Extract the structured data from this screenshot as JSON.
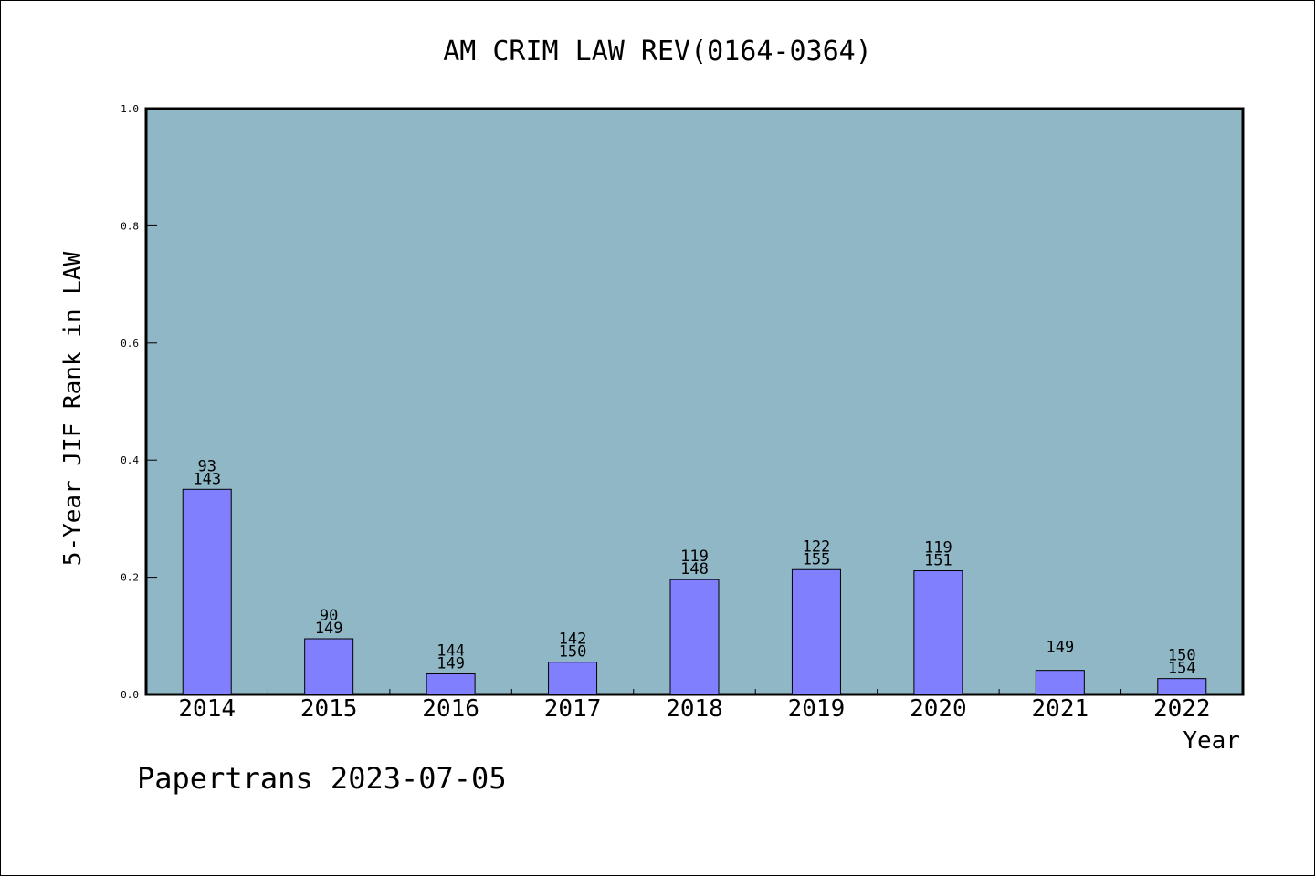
{
  "chart_data": {
    "type": "bar",
    "title": "AM CRIM LAW REV(0164-0364)",
    "xlabel": "Year",
    "ylabel": "5-Year JIF Rank in LAW",
    "categories": [
      "2014",
      "2015",
      "2016",
      "2017",
      "2018",
      "2019",
      "2020",
      "2021",
      "2022"
    ],
    "values": [
      0.35,
      0.095,
      0.035,
      0.055,
      0.196,
      0.213,
      0.211,
      0.041,
      0.027
    ],
    "rank_labels": [
      "93",
      "90",
      "144",
      "142",
      "119",
      "122",
      "119",
      "",
      "150"
    ],
    "total_labels": [
      "143",
      "149",
      "149",
      "150",
      "148",
      "155",
      "151",
      "149",
      "154"
    ],
    "ylim": [
      0,
      1.0
    ],
    "yticks": [
      "0.0",
      "0.2",
      "0.4",
      "0.6",
      "0.8",
      "1.0"
    ],
    "grid": false,
    "colors": {
      "plot_background": "#8fb7c5",
      "bar_fill": "#8080ff",
      "bar_stroke": "#000000"
    }
  },
  "footer": "Papertrans 2023-07-05"
}
